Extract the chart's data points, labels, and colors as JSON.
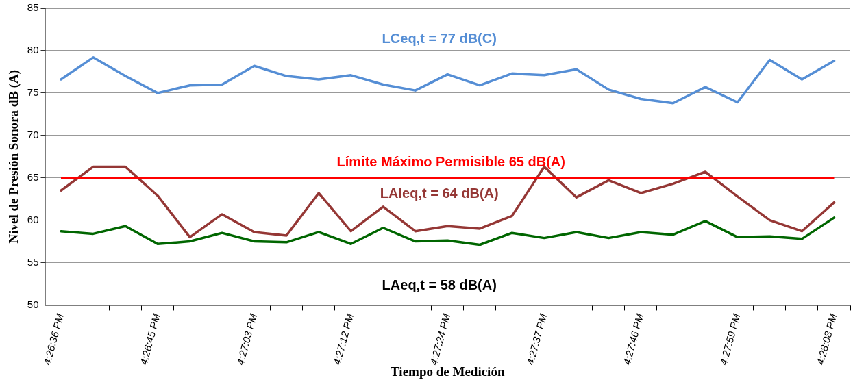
{
  "chart_data": {
    "type": "line",
    "xlabel": "Tiempo de Medición",
    "ylabel": "Nivel de Presión Sonora dB (A)",
    "categories": [
      "4:26:36 PM",
      null,
      null,
      "4:26:45 PM",
      null,
      null,
      "4:27:03 PM",
      null,
      null,
      "4:27:12 PM",
      null,
      null,
      "4:27:24 PM",
      null,
      null,
      "4:27:37 PM",
      null,
      null,
      "4:27:46 PM",
      null,
      null,
      "4:27:59 PM",
      null,
      null,
      "4:28:08 PM"
    ],
    "series": [
      {
        "color": "#558ed5",
        "values": [
          76.6,
          79.2,
          77.0,
          75.0,
          75.9,
          76.0,
          78.2,
          77.0,
          76.6,
          77.1,
          76.0,
          75.3,
          77.2,
          75.9,
          77.3,
          77.1,
          77.8,
          75.4,
          74.3,
          73.8,
          75.7,
          73.9,
          78.9,
          76.6,
          78.8
        ]
      },
      {
        "color": "#953735",
        "values": [
          63.5,
          66.3,
          66.3,
          62.9,
          58.0,
          60.7,
          58.6,
          58.2,
          63.2,
          58.7,
          61.6,
          58.7,
          59.3,
          59.0,
          60.5,
          66.3,
          62.7,
          64.7,
          63.2,
          64.3,
          65.7,
          62.8,
          60.0,
          58.7,
          62.1
        ]
      },
      {
        "color": "#006600",
        "values": [
          58.7,
          58.4,
          59.3,
          57.2,
          57.5,
          58.5,
          57.5,
          57.4,
          58.6,
          57.2,
          59.1,
          57.5,
          57.6,
          57.1,
          58.5,
          57.9,
          58.6,
          57.9,
          58.6,
          58.3,
          59.9,
          58.0,
          58.1,
          57.8,
          60.3
        ]
      }
    ],
    "ylim": [
      50,
      85
    ],
    "yticks": [
      50,
      55,
      60,
      65,
      70,
      75,
      80,
      85
    ],
    "grid": "y",
    "legend": false,
    "marker": "none",
    "line_style": "solid",
    "ref_lines": [
      {
        "axis": "y",
        "value": 65,
        "label": "Límite Máximo Permisible 65 dB(A)",
        "color": "#ff0000"
      }
    ],
    "annotations": [
      "LCeq,t = 77 dB(C)",
      "LAIeq,t = 64 dB(A)",
      "LAeq,t = 58 dB(A)"
    ]
  }
}
